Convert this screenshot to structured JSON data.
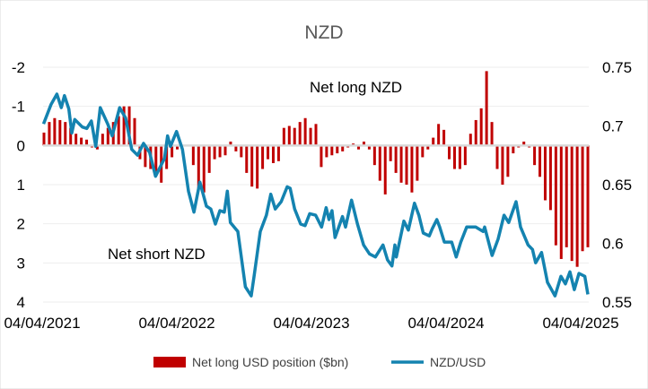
{
  "chart_data": {
    "type": "bar+line",
    "title": "NZD",
    "annotations": [
      "Net long NZD",
      "Net short NZD"
    ],
    "x_tick_labels": [
      "04/04/2021",
      "04/04/2022",
      "04/04/2023",
      "04/04/2024",
      "04/04/2025"
    ],
    "x_range_years_since_start": [
      0,
      4.05
    ],
    "left_axis": {
      "ticks": [
        -2,
        -1,
        0,
        1,
        2,
        3,
        4
      ],
      "tick_labels": [
        "-2",
        "-1",
        "0",
        "1",
        "2",
        "3",
        "4"
      ],
      "range": [
        -2,
        4
      ],
      "inverted": true
    },
    "right_axis": {
      "ticks": [
        0.75,
        0.7,
        0.65,
        0.6,
        0.55
      ],
      "tick_labels": [
        "0.75",
        "0.7",
        "0.65",
        "0.6",
        "0.55"
      ],
      "range": [
        0.55,
        0.75
      ]
    },
    "grid": true,
    "legend_position": "bottom",
    "series": [
      {
        "name": "Net long USD position ($bn)",
        "type": "bar",
        "axis": "left",
        "color": "#C00000",
        "values": [
          -0.33,
          -0.6,
          -0.7,
          -0.65,
          -0.6,
          -0.45,
          -0.3,
          -0.2,
          -0.15,
          0.05,
          0.1,
          -0.3,
          -0.45,
          -0.6,
          -0.75,
          -1.0,
          -1.0,
          -0.7,
          0.35,
          0.55,
          0.6,
          0.75,
          0.95,
          0.6,
          0.3,
          0.1,
          0,
          0,
          0.5,
          1.1,
          1.2,
          0.7,
          0.35,
          0.3,
          0.25,
          -0.1,
          0.15,
          0.3,
          0.7,
          1.05,
          1.1,
          0.6,
          0.35,
          0.45,
          0.4,
          -0.45,
          -0.5,
          -0.45,
          -0.6,
          -0.7,
          -0.45,
          -0.55,
          0.55,
          0.3,
          0.25,
          0.2,
          0.15,
          0.05,
          -0.05,
          0.1,
          -0.1,
          0.1,
          0.5,
          0.9,
          1.25,
          0.4,
          0.7,
          0.95,
          1.0,
          1.2,
          0.9,
          0.3,
          0.1,
          -0.2,
          -0.55,
          -0.4,
          0.35,
          0.6,
          0.6,
          0.5,
          -0.3,
          -0.65,
          -0.95,
          -1.9,
          -0.6,
          0.6,
          1.0,
          0.8,
          0.2,
          0.05,
          -0.1,
          0.05,
          0.5,
          0.8,
          1.4,
          1.65,
          2.55,
          2.9,
          2.6,
          2.95,
          3.1,
          2.7,
          2.6
        ]
      },
      {
        "name": "NZD/USD",
        "type": "line",
        "axis": "right",
        "color": "#1483B0",
        "points": [
          [
            0.01,
            0.7017
          ],
          [
            0.065,
            0.7182
          ],
          [
            0.109,
            0.7271
          ],
          [
            0.142,
            0.7156
          ],
          [
            0.165,
            0.7258
          ],
          [
            0.198,
            0.7144
          ],
          [
            0.22,
            0.694
          ],
          [
            0.242,
            0.7055
          ],
          [
            0.298,
            0.6991
          ],
          [
            0.331,
            0.6979
          ],
          [
            0.365,
            0.7042
          ],
          [
            0.398,
            0.6826
          ],
          [
            0.431,
            0.7156
          ],
          [
            0.487,
            0.7017
          ],
          [
            0.52,
            0.6915
          ],
          [
            0.575,
            0.7156
          ],
          [
            0.62,
            0.7067
          ],
          [
            0.665,
            0.68
          ],
          [
            0.709,
            0.675
          ],
          [
            0.753,
            0.6851
          ],
          [
            0.798,
            0.6775
          ],
          [
            0.842,
            0.6571
          ],
          [
            0.909,
            0.6724
          ],
          [
            0.931,
            0.6915
          ],
          [
            0.953,
            0.6826
          ],
          [
            0.998,
            0.6953
          ],
          [
            1.042,
            0.68
          ],
          [
            1.087,
            0.6444
          ],
          [
            1.127,
            0.6266
          ],
          [
            1.171,
            0.6521
          ],
          [
            1.22,
            0.6317
          ],
          [
            1.253,
            0.6292
          ],
          [
            1.287,
            0.6164
          ],
          [
            1.32,
            0.6279
          ],
          [
            1.353,
            0.6266
          ],
          [
            1.375,
            0.6444
          ],
          [
            1.398,
            0.6177
          ],
          [
            1.453,
            0.6101
          ],
          [
            1.509,
            0.563
          ],
          [
            1.553,
            0.5553
          ],
          [
            1.575,
            0.5731
          ],
          [
            1.62,
            0.6101
          ],
          [
            1.665,
            0.624
          ],
          [
            1.698,
            0.6418
          ],
          [
            1.731,
            0.6292
          ],
          [
            1.775,
            0.6355
          ],
          [
            1.82,
            0.6482
          ],
          [
            1.842,
            0.6469
          ],
          [
            1.875,
            0.6292
          ],
          [
            1.92,
            0.6164
          ],
          [
            1.953,
            0.6151
          ],
          [
            1.987,
            0.6253
          ],
          [
            2.031,
            0.624
          ],
          [
            2.075,
            0.6139
          ],
          [
            2.109,
            0.6304
          ],
          [
            2.131,
            0.6202
          ],
          [
            2.153,
            0.6279
          ],
          [
            2.175,
            0.605
          ],
          [
            2.231,
            0.6228
          ],
          [
            2.253,
            0.6139
          ],
          [
            2.298,
            0.6368
          ],
          [
            2.342,
            0.6164
          ],
          [
            2.387,
            0.5986
          ],
          [
            2.431,
            0.591
          ],
          [
            2.475,
            0.5884
          ],
          [
            2.531,
            0.5986
          ],
          [
            2.565,
            0.5859
          ],
          [
            2.598,
            0.5808
          ],
          [
            2.62,
            0.5986
          ],
          [
            2.631,
            0.5884
          ],
          [
            2.687,
            0.6189
          ],
          [
            2.72,
            0.6113
          ],
          [
            2.765,
            0.6342
          ],
          [
            2.798,
            0.624
          ],
          [
            2.831,
            0.6088
          ],
          [
            2.875,
            0.6063
          ],
          [
            2.898,
            0.6126
          ],
          [
            2.931,
            0.6202
          ],
          [
            2.953,
            0.6139
          ],
          [
            2.987,
            0.6011
          ],
          [
            3.042,
            0.6011
          ],
          [
            3.075,
            0.5884
          ],
          [
            3.109,
            0.6011
          ],
          [
            3.153,
            0.6139
          ],
          [
            3.22,
            0.6139
          ],
          [
            3.275,
            0.6101
          ],
          [
            3.287,
            0.6139
          ],
          [
            3.342,
            0.5897
          ],
          [
            3.387,
            0.6037
          ],
          [
            3.431,
            0.624
          ],
          [
            3.465,
            0.6177
          ],
          [
            3.52,
            0.6355
          ],
          [
            3.553,
            0.6139
          ],
          [
            3.609,
            0.5986
          ],
          [
            3.642,
            0.5948
          ],
          [
            3.665,
            0.5834
          ],
          [
            3.709,
            0.5922
          ],
          [
            3.753,
            0.5668
          ],
          [
            3.809,
            0.5553
          ],
          [
            3.853,
            0.5719
          ],
          [
            3.887,
            0.5655
          ],
          [
            3.92,
            0.5757
          ],
          [
            3.953,
            0.5605
          ],
          [
            3.987,
            0.5744
          ],
          [
            4.031,
            0.5719
          ],
          [
            4.053,
            0.5566
          ]
        ]
      }
    ]
  }
}
